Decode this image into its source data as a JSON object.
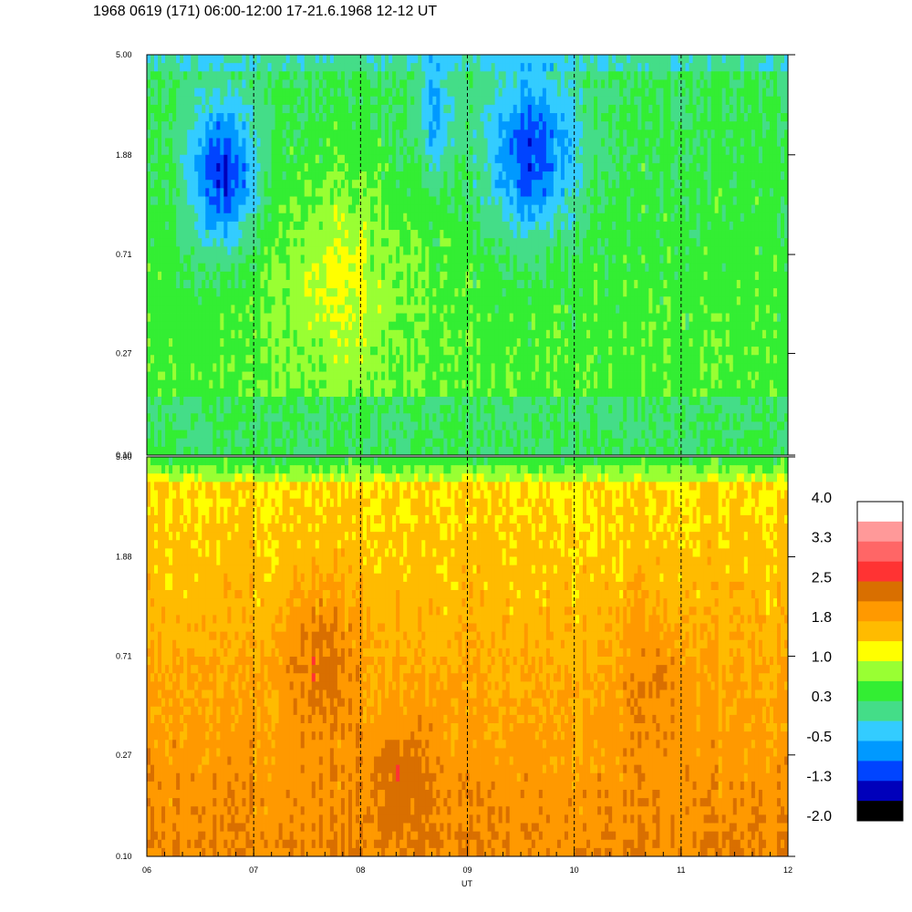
{
  "title": "1968 0619 (171) 06:00-12:00 17-21.6.1968  12-12 UT",
  "chart_data": {
    "type": "heatmap",
    "panels": 2,
    "xlabel": "UT",
    "xlim": [
      6,
      12
    ],
    "x_ticks": [
      "06",
      "07",
      "08",
      "09",
      "10",
      "11",
      "12"
    ],
    "x_dashed_lines": [
      7,
      8,
      9,
      10,
      11
    ],
    "y_scale": "log",
    "ylim": [
      0.1,
      5.0
    ],
    "y_ticks": [
      "5.00",
      "1.88",
      "0.71",
      "0.27",
      "0.10"
    ],
    "colorbar": {
      "min": -2.0,
      "max": 4.0,
      "labels": [
        "4.0",
        "3.3",
        "2.5",
        "1.8",
        "1.0",
        "0.3",
        "-0.5",
        "-1.3",
        "-2.0"
      ],
      "colors": [
        "#ffffff",
        "#ff9999",
        "#ff6666",
        "#ff3333",
        "#d96f00",
        "#ff9900",
        "#ffbb00",
        "#ffff00",
        "#99ff33",
        "#33ee33",
        "#44dd88",
        "#33ccff",
        "#0099ff",
        "#0044ff",
        "#0000bb",
        "#000000"
      ]
    }
  }
}
